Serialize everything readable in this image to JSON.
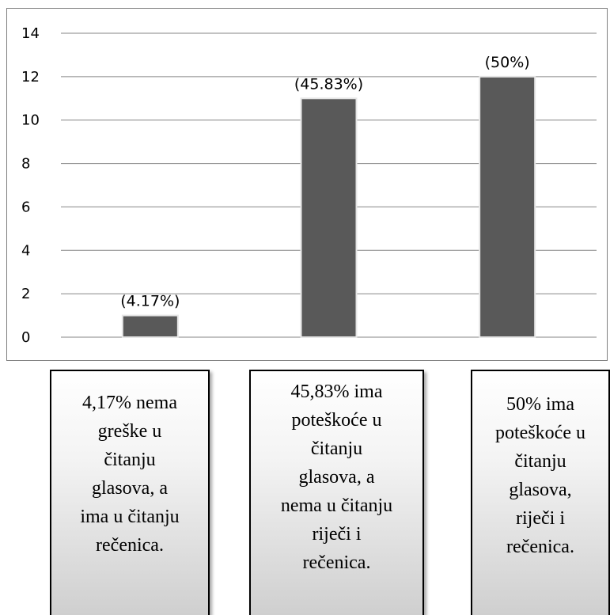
{
  "chart_data": {
    "type": "bar",
    "categories": [
      "",
      "",
      ""
    ],
    "values": [
      1,
      11,
      12
    ],
    "data_labels": [
      "(4.17%)",
      "(45.83%)",
      "(50%)"
    ],
    "ylim": [
      0,
      14
    ],
    "yticks": [
      0,
      2,
      4,
      6,
      8,
      10,
      12,
      14
    ],
    "grid": true,
    "legend": "none",
    "title": "",
    "xlabel": "",
    "ylabel": "",
    "bar_color": "#595959",
    "grid_color": "#868686"
  },
  "descriptions": [
    "4,17% nema\ngreške u\nčitanju\nglasova, a\nima u čitanju\nrečenica.",
    "45,83%  ima\npoteškoće u\nčitanju\nglasova, a\nnema u čitanju\nriječi i\nrečenica.",
    "50% ima\npoteškoće u\nčitanju\nglasova,\nriječi i\nrečenica."
  ]
}
